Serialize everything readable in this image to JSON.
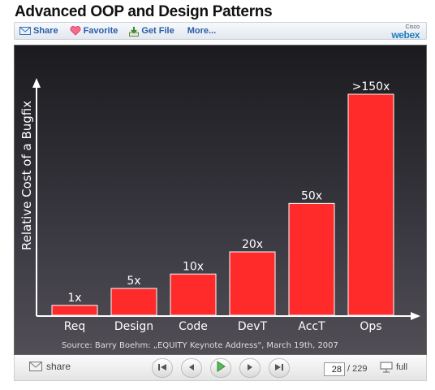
{
  "page": {
    "title": "Advanced OOP and Design Patterns"
  },
  "toolbar": {
    "share_label": "Share",
    "favorite_label": "Favorite",
    "getfile_label": "Get File",
    "more_label": "More...",
    "brand_small": "Cisco",
    "brand_large": "webex"
  },
  "slide": {
    "source": "Source: Barry Boehm: „EQUITY Keynote Address\", March 19th, 2007"
  },
  "chart_data": {
    "type": "bar",
    "ylabel": "Relative Cost of a Bugfix",
    "categories": [
      "Req",
      "Design",
      "Code",
      "DevT",
      "AccT",
      "Ops"
    ],
    "values": [
      1,
      5,
      10,
      20,
      50,
      150
    ],
    "labels": [
      "1x",
      "5x",
      "10x",
      "20x",
      "50x",
      ">150x"
    ],
    "bar_color": "#ff2a2a"
  },
  "controls": {
    "share_label": "share",
    "current_page": "28",
    "total_pages": "/ 229",
    "full_label": "full"
  }
}
